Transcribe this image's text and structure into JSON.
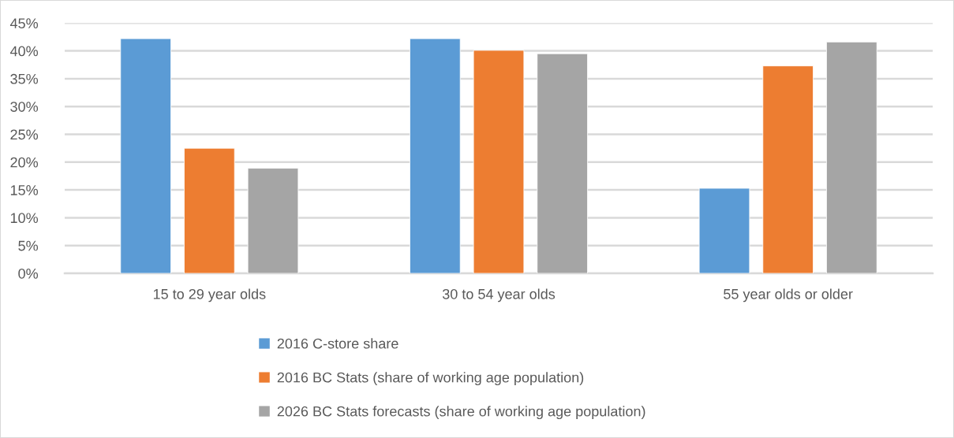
{
  "chart_data": {
    "type": "bar",
    "categories": [
      "15 to 29 year olds",
      "30 to 54 year olds",
      "55 year olds or older"
    ],
    "series": [
      {
        "name": "2016 C-store share",
        "color": "#5b9bd5",
        "values": [
          42.2,
          42.2,
          15.3
        ]
      },
      {
        "name": "2016 BC Stats (share of working age population)",
        "color": "#ed7d31",
        "values": [
          22.5,
          40.1,
          37.3
        ]
      },
      {
        "name": "2026 BC Stats forecasts (share of working age population)",
        "color": "#a5a5a5",
        "values": [
          18.9,
          39.5,
          41.6
        ]
      }
    ],
    "ylim": [
      0,
      45
    ],
    "yticks": [
      {
        "value": 0,
        "label": "0%"
      },
      {
        "value": 5,
        "label": "5%"
      },
      {
        "value": 10,
        "label": "10%"
      },
      {
        "value": 15,
        "label": "15%"
      },
      {
        "value": 20,
        "label": "20%"
      },
      {
        "value": 25,
        "label": "25%"
      },
      {
        "value": 30,
        "label": "30%"
      },
      {
        "value": 35,
        "label": "35%"
      },
      {
        "value": 40,
        "label": "40%"
      },
      {
        "value": 45,
        "label": "45%"
      }
    ],
    "grid": "y",
    "legend": "bottom"
  }
}
